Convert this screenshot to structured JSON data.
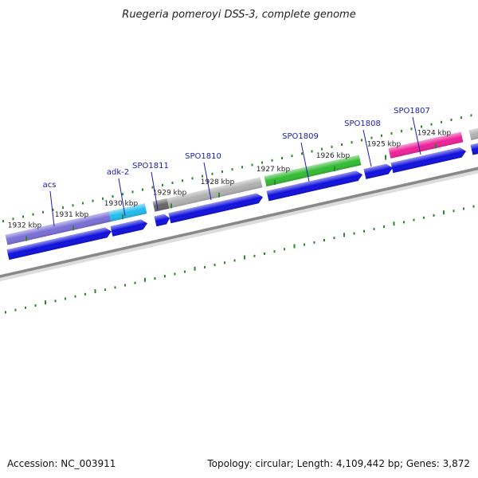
{
  "title": "Ruegeria pomeroyi DSS-3, complete genome",
  "footer": {
    "accession": "Accession: NC_003911",
    "summary": "Topology: circular; Length: 4,109,442 bp; Genes: 3,872"
  },
  "colors": {
    "backbone": "#888888",
    "tick": "#2a8a2a",
    "cds": "#1010dd",
    "label": "#1a1ab8"
  },
  "ticks": [
    {
      "kbp": 1932,
      "label": "1932 kbp"
    },
    {
      "kbp": 1931,
      "label": "1931 kbp"
    },
    {
      "kbp": 1930,
      "label": "1930 kbp"
    },
    {
      "kbp": 1929,
      "label": "1929 kbp"
    },
    {
      "kbp": 1928,
      "label": "1928 kbp"
    },
    {
      "kbp": 1927,
      "label": "1927 kbp"
    },
    {
      "kbp": 1926,
      "label": "1926 kbp"
    },
    {
      "kbp": 1925,
      "label": "1925 kbp"
    },
    {
      "kbp": 1924,
      "label": "1924 kbp"
    }
  ],
  "genes": [
    {
      "name": "acs",
      "color": "#7a6fd6"
    },
    {
      "name": "adk-2",
      "color": "#22bbee"
    },
    {
      "name": "SPO1811",
      "color": "#666666"
    },
    {
      "name": "SPO1810",
      "color": "#b0b0b0"
    },
    {
      "name": "SPO1809",
      "color": "#33bb33"
    },
    {
      "name": "SPO1808",
      "color": "#1010dd"
    },
    {
      "name": "SPO1807",
      "color": "#ee2299"
    }
  ]
}
